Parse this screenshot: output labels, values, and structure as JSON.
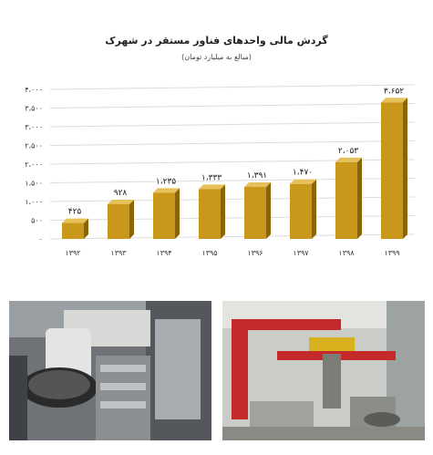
{
  "chart_data": {
    "type": "bar",
    "title": "گردش مالی واحدهای فناور مستقر در شهرک",
    "subtitle": "(مبالغ به میلیارد تومان)",
    "categories": [
      "۱۳۹۲",
      "۱۳۹۳",
      "۱۳۹۴",
      "۱۳۹۵",
      "۱۳۹۶",
      "۱۳۹۷",
      "۱۳۹۸",
      "۱۳۹۹"
    ],
    "values": [
      425,
      928,
      1235,
      1333,
      1391,
      1470,
      2053,
      3652
    ],
    "value_labels": [
      "۴۲۵",
      "۹۲۸",
      "۱،۲۳۵",
      "۱،۳۳۳",
      "۱،۳۹۱",
      "۱،۴۷۰",
      "۲،۰۵۳",
      "۳،۶۵۲"
    ],
    "y_ticks": [
      0,
      500,
      1000,
      1500,
      2000,
      2500,
      3000,
      3500,
      4000
    ],
    "y_tick_labels": [
      "۰",
      "۵۰۰",
      "۱،۰۰۰",
      "۱،۵۰۰",
      "۲،۰۰۰",
      "۲،۵۰۰",
      "۳،۰۰۰",
      "۳،۵۰۰",
      "۴،۰۰۰"
    ],
    "ylim": [
      0,
      4000
    ],
    "grid": true,
    "xlabel": "",
    "ylabel": "",
    "colors": {
      "bar_front": "#c9981a",
      "bar_side": "#8a6508",
      "bar_top": "#e6c15a",
      "grid": "#dddddd"
    }
  },
  "photos": {
    "left_icon": "machinery-photo",
    "right_icon": "industrial-workshop-photo"
  }
}
